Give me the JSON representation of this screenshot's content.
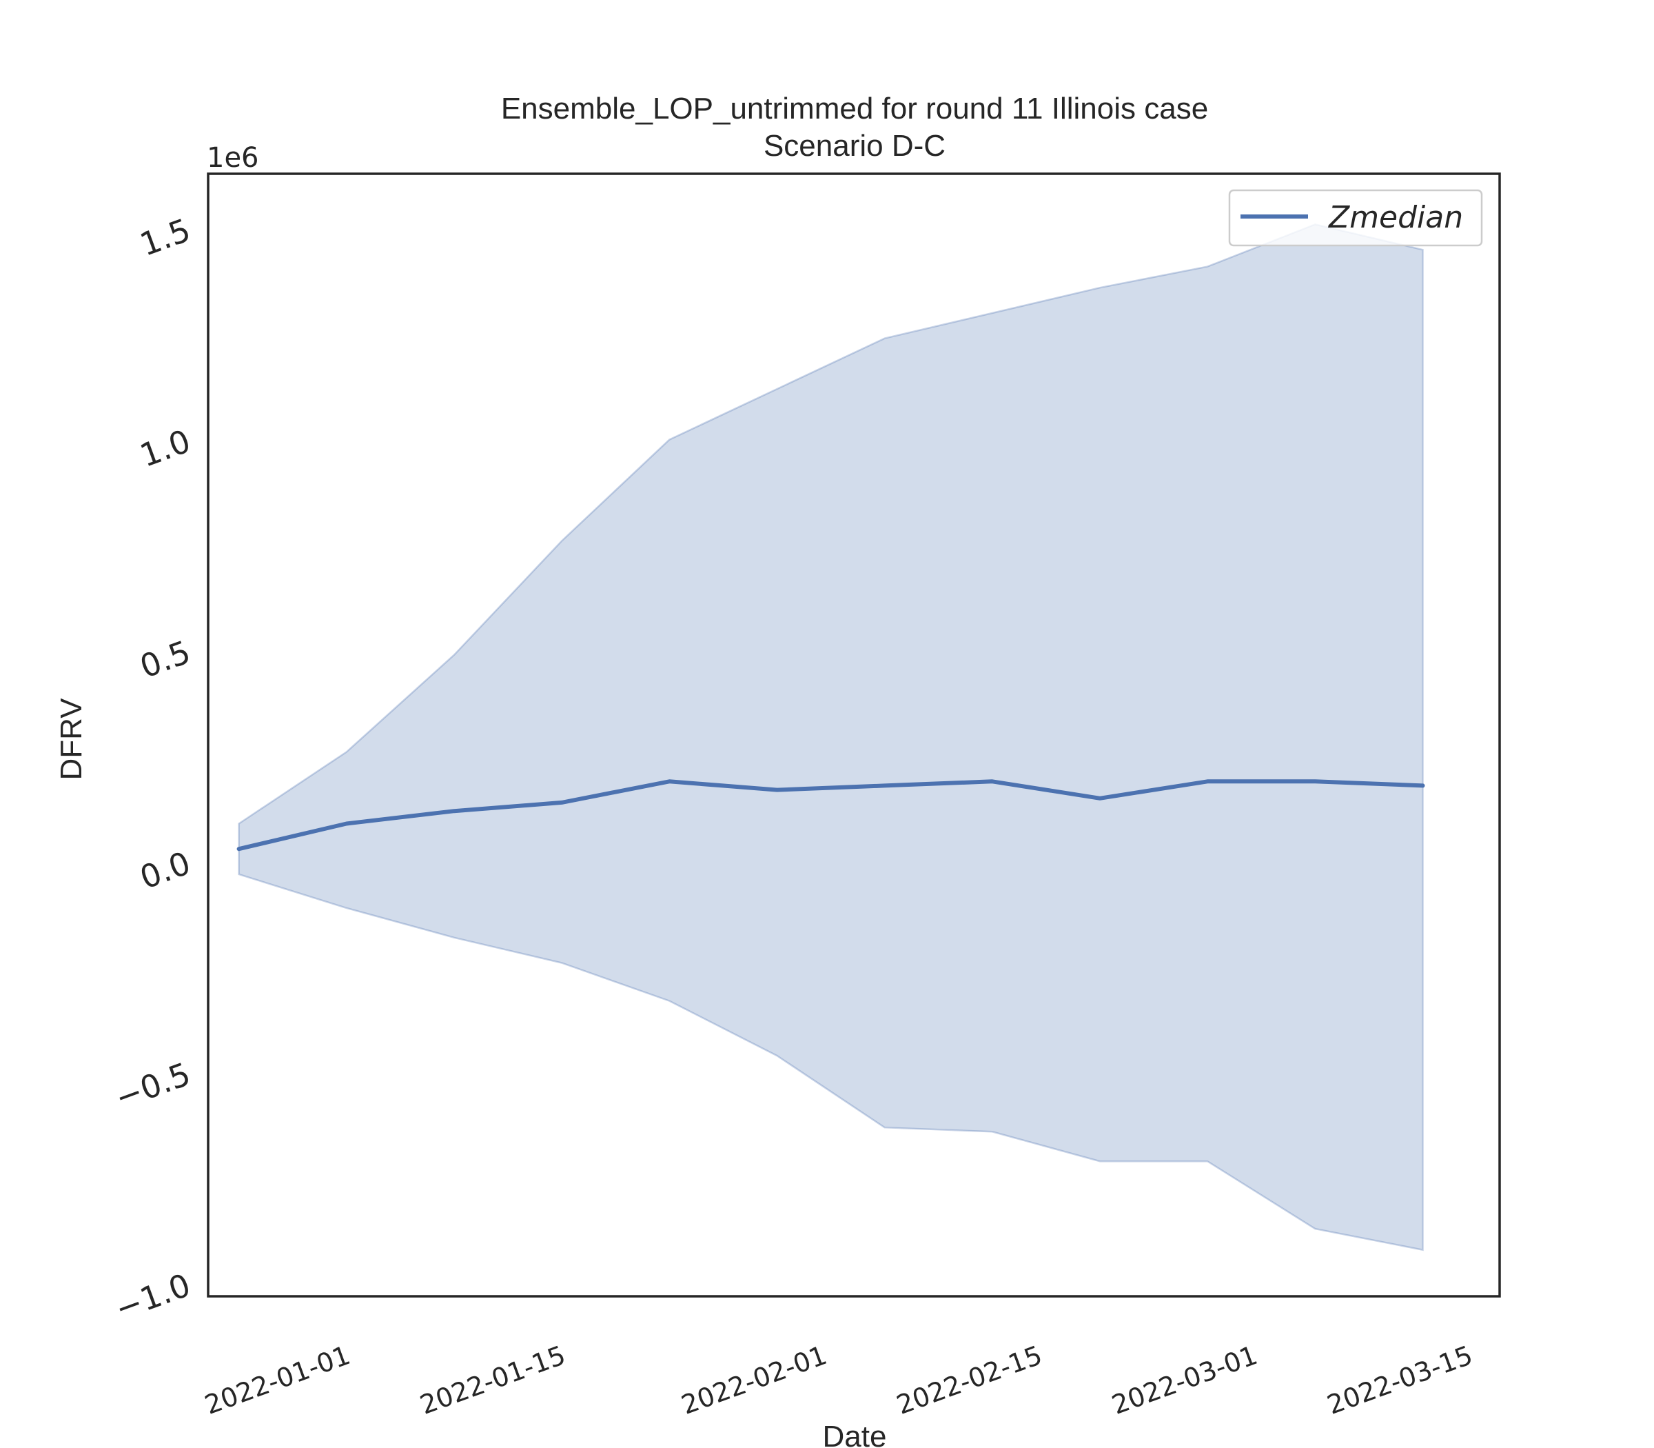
{
  "chart_data": {
    "type": "line",
    "title": "Ensemble_LOP_untrimmed for round 11 Illinois case",
    "subtitle": "Scenario D-C",
    "xlabel": "Date",
    "ylabel": "DFRV",
    "y_offset_label": "1e6",
    "y_scale": 1000000,
    "xlim": [
      "2021-12-23",
      "2022-03-17"
    ],
    "ylim": [
      -1030000,
      1630000
    ],
    "x_ticks": [
      "2022-01-01",
      "2022-01-15",
      "2022-02-01",
      "2022-02-15",
      "2022-03-01",
      "2022-03-15"
    ],
    "y_ticks": [
      -1000000,
      -500000,
      0,
      500000,
      1000000,
      1500000
    ],
    "y_tick_labels": [
      "−1.0",
      "−0.5",
      "0.0",
      "0.5",
      "1.0",
      "1.5"
    ],
    "grid": false,
    "legend_position": "top-right",
    "x": [
      "2021-12-25",
      "2022-01-01",
      "2022-01-08",
      "2022-01-15",
      "2022-01-22",
      "2022-01-29",
      "2022-02-05",
      "2022-02-12",
      "2022-02-19",
      "2022-02-26",
      "2022-03-05",
      "2022-03-12"
    ],
    "series": [
      {
        "name": "Zmedian",
        "color": "#4c72b0",
        "values": [
          30000,
          90000,
          120000,
          140000,
          190000,
          170000,
          180000,
          190000,
          150000,
          190000,
          190000,
          180000
        ]
      }
    ],
    "band": {
      "color": "#4c72b0",
      "lower": [
        -30000,
        -110000,
        -180000,
        -240000,
        -330000,
        -460000,
        -630000,
        -640000,
        -710000,
        -710000,
        -870000,
        -920000
      ],
      "upper": [
        90000,
        260000,
        490000,
        760000,
        1000000,
        1120000,
        1240000,
        1300000,
        1360000,
        1410000,
        1510000,
        1450000
      ]
    }
  }
}
